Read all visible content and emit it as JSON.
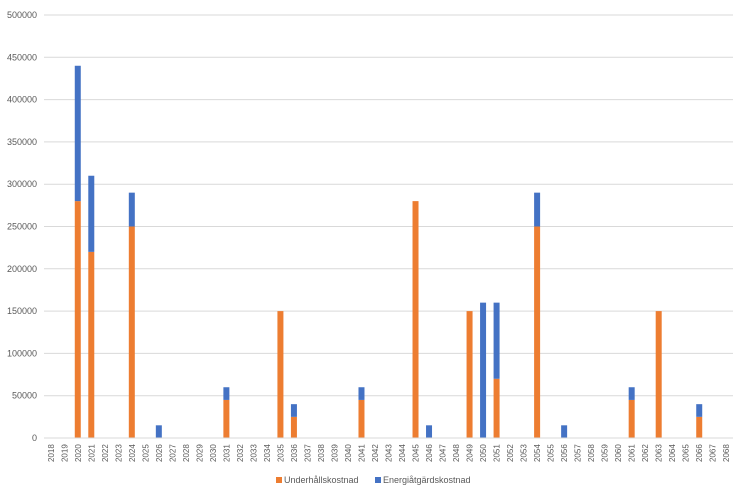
{
  "chart_data": {
    "type": "bar",
    "stacked": true,
    "categories": [
      "2018",
      "2019",
      "2020",
      "2021",
      "2022",
      "2023",
      "2024",
      "2025",
      "2026",
      "2027",
      "2028",
      "2029",
      "2030",
      "2031",
      "2032",
      "2033",
      "2034",
      "2035",
      "2036",
      "2037",
      "2038",
      "2039",
      "2040",
      "2041",
      "2042",
      "2043",
      "2044",
      "2045",
      "2046",
      "2047",
      "2048",
      "2049",
      "2050",
      "2051",
      "2052",
      "2053",
      "2054",
      "2055",
      "2056",
      "2057",
      "2058",
      "2059",
      "2060",
      "2061",
      "2062",
      "2063",
      "2064",
      "2065",
      "2066",
      "2067",
      "2068"
    ],
    "series": [
      {
        "name": "Underhållskostnad",
        "color": "#ED7D31",
        "values": [
          0,
          0,
          280000,
          220000,
          0,
          0,
          250000,
          0,
          0,
          0,
          0,
          0,
          0,
          45000,
          0,
          0,
          0,
          150000,
          25000,
          0,
          0,
          0,
          0,
          45000,
          0,
          0,
          0,
          280000,
          0,
          0,
          0,
          150000,
          0,
          70000,
          0,
          0,
          250000,
          0,
          0,
          0,
          0,
          0,
          0,
          45000,
          0,
          150000,
          0,
          0,
          25000,
          0,
          0
        ]
      },
      {
        "name": "Energiåtgärdskostnad",
        "color": "#4472C4",
        "values": [
          0,
          0,
          160000,
          90000,
          0,
          0,
          40000,
          0,
          15000,
          0,
          0,
          0,
          0,
          15000,
          0,
          0,
          0,
          0,
          15000,
          0,
          0,
          0,
          0,
          15000,
          0,
          0,
          0,
          0,
          15000,
          0,
          0,
          0,
          160000,
          90000,
          0,
          0,
          40000,
          0,
          15000,
          0,
          0,
          0,
          0,
          15000,
          0,
          0,
          0,
          0,
          15000,
          0,
          0
        ]
      }
    ],
    "ylim": [
      0,
      500000
    ],
    "yticks": [
      "0",
      "50000",
      "100000",
      "150000",
      "200000",
      "250000",
      "300000",
      "350000",
      "400000",
      "450000",
      "500000"
    ],
    "grid": true,
    "legend": "bottom"
  }
}
